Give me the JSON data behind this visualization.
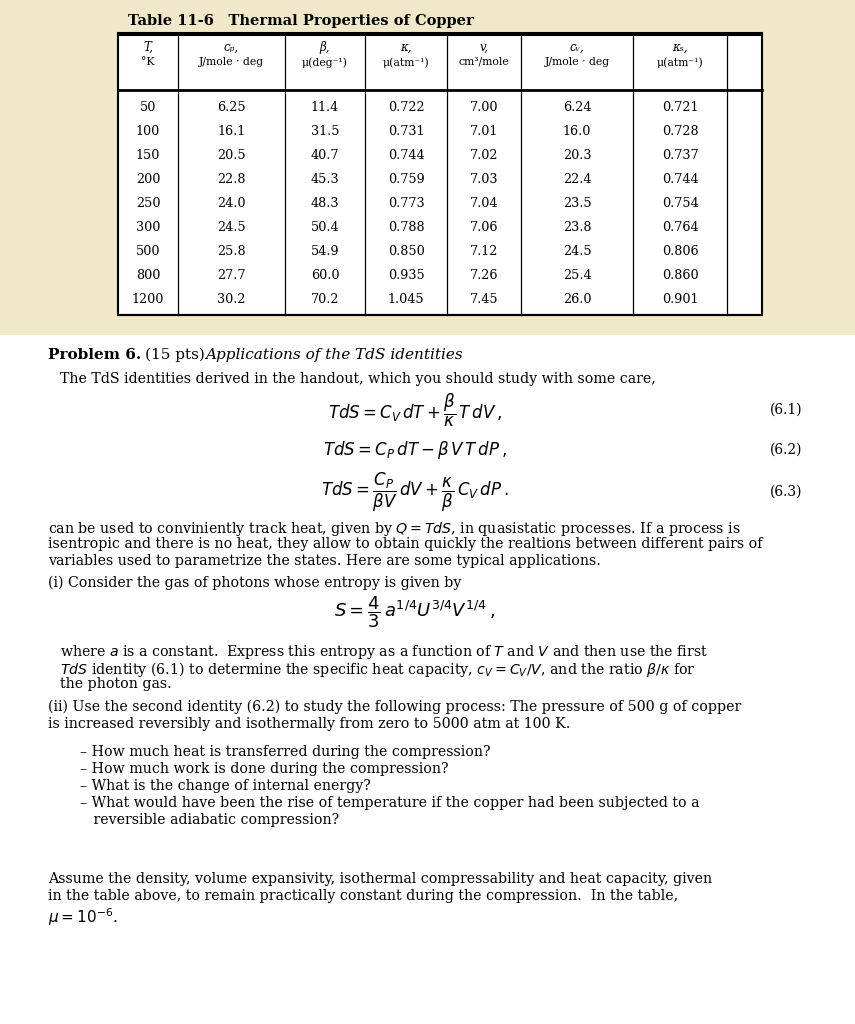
{
  "bg_color": "#f0e8c8",
  "white_color": "#ffffff",
  "table_title": "Table 11-6",
  "table_subtitle": "Thermal Properties of Copper",
  "table_data": [
    [
      "50",
      "6.25",
      "11.4",
      "0.722",
      "7.00",
      "6.24",
      "0.721"
    ],
    [
      "100",
      "16.1",
      "31.5",
      "0.731",
      "7.01",
      "16.0",
      "0.728"
    ],
    [
      "150",
      "20.5",
      "40.7",
      "0.744",
      "7.02",
      "20.3",
      "0.737"
    ],
    [
      "200",
      "22.8",
      "45.3",
      "0.759",
      "7.03",
      "22.4",
      "0.744"
    ],
    [
      "250",
      "24.0",
      "48.3",
      "0.773",
      "7.04",
      "23.5",
      "0.754"
    ],
    [
      "300",
      "24.5",
      "50.4",
      "0.788",
      "7.06",
      "23.8",
      "0.764"
    ],
    [
      "500",
      "25.8",
      "54.9",
      "0.850",
      "7.12",
      "24.5",
      "0.806"
    ],
    [
      "800",
      "27.7",
      "60.0",
      "0.935",
      "7.26",
      "25.4",
      "0.860"
    ],
    [
      "1200",
      "30.2",
      "70.2",
      "1.045",
      "7.45",
      "26.0",
      "0.901"
    ]
  ]
}
